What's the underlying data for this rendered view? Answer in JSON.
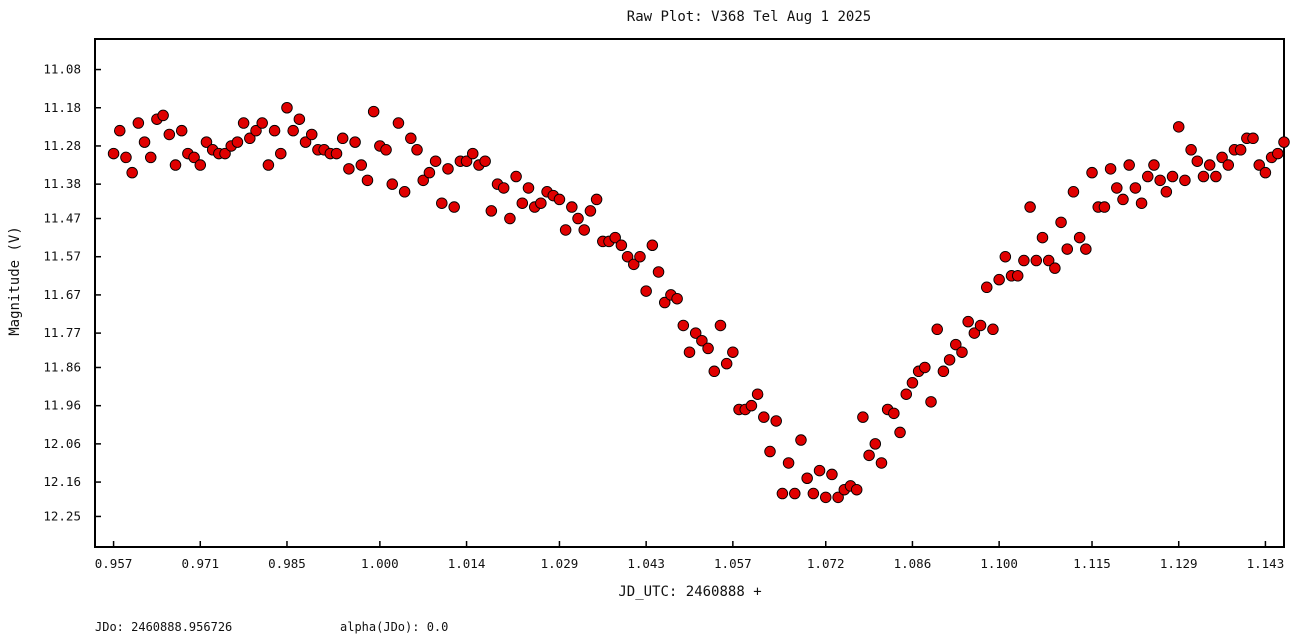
{
  "chart_data": {
    "type": "scatter",
    "title": "Raw Plot: V368 Tel Aug 1 2025",
    "xlabel": "JD_UTC: 2460888 +",
    "ylabel": "Magnitude (V)",
    "x_ticks": [
      "0.957",
      "0.971",
      "0.985",
      "1.000",
      "1.014",
      "1.029",
      "1.043",
      "1.057",
      "1.072",
      "1.086",
      "1.100",
      "1.115",
      "1.129",
      "1.143"
    ],
    "y_ticks": [
      "11.08",
      "11.18",
      "11.28",
      "11.38",
      "11.47",
      "11.57",
      "11.67",
      "11.77",
      "11.86",
      "11.96",
      "12.06",
      "12.16",
      "12.25"
    ],
    "xlim": [
      0.954,
      1.146
    ],
    "ylim": [
      12.33,
      11.0
    ],
    "y_inverted": true,
    "grid": false,
    "marker_color": "#e00000",
    "marker_edge_color": "#000000",
    "series": [
      {
        "points": [
          [
            0.957,
            11.3
          ],
          [
            0.958,
            11.24
          ],
          [
            0.959,
            11.31
          ],
          [
            0.96,
            11.35
          ],
          [
            0.961,
            11.22
          ],
          [
            0.962,
            11.27
          ],
          [
            0.963,
            11.31
          ],
          [
            0.964,
            11.21
          ],
          [
            0.965,
            11.2
          ],
          [
            0.966,
            11.25
          ],
          [
            0.967,
            11.33
          ],
          [
            0.968,
            11.24
          ],
          [
            0.969,
            11.3
          ],
          [
            0.97,
            11.31
          ],
          [
            0.971,
            11.33
          ],
          [
            0.972,
            11.27
          ],
          [
            0.973,
            11.29
          ],
          [
            0.974,
            11.3
          ],
          [
            0.975,
            11.3
          ],
          [
            0.976,
            11.28
          ],
          [
            0.977,
            11.27
          ],
          [
            0.978,
            11.22
          ],
          [
            0.979,
            11.26
          ],
          [
            0.98,
            11.24
          ],
          [
            0.981,
            11.22
          ],
          [
            0.982,
            11.33
          ],
          [
            0.983,
            11.24
          ],
          [
            0.984,
            11.3
          ],
          [
            0.985,
            11.18
          ],
          [
            0.986,
            11.24
          ],
          [
            0.987,
            11.21
          ],
          [
            0.988,
            11.27
          ],
          [
            0.989,
            11.25
          ],
          [
            0.99,
            11.29
          ],
          [
            0.991,
            11.29
          ],
          [
            0.992,
            11.3
          ],
          [
            0.993,
            11.3
          ],
          [
            0.994,
            11.26
          ],
          [
            0.995,
            11.34
          ],
          [
            0.996,
            11.27
          ],
          [
            0.997,
            11.33
          ],
          [
            0.998,
            11.37
          ],
          [
            0.999,
            11.19
          ],
          [
            1.0,
            11.28
          ],
          [
            1.001,
            11.29
          ],
          [
            1.002,
            11.38
          ],
          [
            1.003,
            11.22
          ],
          [
            1.004,
            11.4
          ],
          [
            1.005,
            11.26
          ],
          [
            1.006,
            11.29
          ],
          [
            1.007,
            11.37
          ],
          [
            1.008,
            11.35
          ],
          [
            1.009,
            11.32
          ],
          [
            1.01,
            11.43
          ],
          [
            1.011,
            11.34
          ],
          [
            1.012,
            11.44
          ],
          [
            1.013,
            11.32
          ],
          [
            1.014,
            11.32
          ],
          [
            1.015,
            11.3
          ],
          [
            1.016,
            11.33
          ],
          [
            1.017,
            11.32
          ],
          [
            1.018,
            11.45
          ],
          [
            1.019,
            11.38
          ],
          [
            1.02,
            11.39
          ],
          [
            1.021,
            11.47
          ],
          [
            1.022,
            11.36
          ],
          [
            1.023,
            11.43
          ],
          [
            1.024,
            11.39
          ],
          [
            1.025,
            11.44
          ],
          [
            1.026,
            11.43
          ],
          [
            1.027,
            11.4
          ],
          [
            1.028,
            11.41
          ],
          [
            1.029,
            11.42
          ],
          [
            1.03,
            11.5
          ],
          [
            1.031,
            11.44
          ],
          [
            1.032,
            11.47
          ],
          [
            1.033,
            11.5
          ],
          [
            1.034,
            11.45
          ],
          [
            1.035,
            11.42
          ],
          [
            1.036,
            11.53
          ],
          [
            1.037,
            11.53
          ],
          [
            1.038,
            11.52
          ],
          [
            1.039,
            11.54
          ],
          [
            1.04,
            11.57
          ],
          [
            1.041,
            11.59
          ],
          [
            1.042,
            11.57
          ],
          [
            1.043,
            11.66
          ],
          [
            1.044,
            11.54
          ],
          [
            1.045,
            11.61
          ],
          [
            1.046,
            11.69
          ],
          [
            1.047,
            11.67
          ],
          [
            1.048,
            11.68
          ],
          [
            1.049,
            11.75
          ],
          [
            1.05,
            11.82
          ],
          [
            1.051,
            11.77
          ],
          [
            1.052,
            11.79
          ],
          [
            1.053,
            11.81
          ],
          [
            1.054,
            11.87
          ],
          [
            1.055,
            11.75
          ],
          [
            1.056,
            11.85
          ],
          [
            1.057,
            11.82
          ],
          [
            1.058,
            11.97
          ],
          [
            1.059,
            11.97
          ],
          [
            1.06,
            11.96
          ],
          [
            1.061,
            11.93
          ],
          [
            1.062,
            11.99
          ],
          [
            1.063,
            12.08
          ],
          [
            1.064,
            12.0
          ],
          [
            1.065,
            12.19
          ],
          [
            1.066,
            12.11
          ],
          [
            1.067,
            12.19
          ],
          [
            1.068,
            12.05
          ],
          [
            1.069,
            12.15
          ],
          [
            1.07,
            12.19
          ],
          [
            1.071,
            12.13
          ],
          [
            1.072,
            12.2
          ],
          [
            1.073,
            12.14
          ],
          [
            1.074,
            12.2
          ],
          [
            1.075,
            12.18
          ],
          [
            1.076,
            12.17
          ],
          [
            1.077,
            12.18
          ],
          [
            1.078,
            11.99
          ],
          [
            1.079,
            12.09
          ],
          [
            1.08,
            12.06
          ],
          [
            1.081,
            12.11
          ],
          [
            1.082,
            11.97
          ],
          [
            1.083,
            11.98
          ],
          [
            1.084,
            12.03
          ],
          [
            1.085,
            11.93
          ],
          [
            1.086,
            11.9
          ],
          [
            1.087,
            11.87
          ],
          [
            1.088,
            11.86
          ],
          [
            1.089,
            11.95
          ],
          [
            1.09,
            11.76
          ],
          [
            1.091,
            11.87
          ],
          [
            1.092,
            11.84
          ],
          [
            1.093,
            11.8
          ],
          [
            1.094,
            11.82
          ],
          [
            1.095,
            11.74
          ],
          [
            1.096,
            11.77
          ],
          [
            1.097,
            11.75
          ],
          [
            1.098,
            11.65
          ],
          [
            1.099,
            11.76
          ],
          [
            1.1,
            11.63
          ],
          [
            1.101,
            11.57
          ],
          [
            1.102,
            11.62
          ],
          [
            1.103,
            11.62
          ],
          [
            1.104,
            11.58
          ],
          [
            1.105,
            11.44
          ],
          [
            1.106,
            11.58
          ],
          [
            1.107,
            11.52
          ],
          [
            1.108,
            11.58
          ],
          [
            1.109,
            11.6
          ],
          [
            1.11,
            11.48
          ],
          [
            1.111,
            11.55
          ],
          [
            1.112,
            11.4
          ],
          [
            1.113,
            11.52
          ],
          [
            1.114,
            11.55
          ],
          [
            1.115,
            11.35
          ],
          [
            1.116,
            11.44
          ],
          [
            1.117,
            11.44
          ],
          [
            1.118,
            11.34
          ],
          [
            1.119,
            11.39
          ],
          [
            1.12,
            11.42
          ],
          [
            1.121,
            11.33
          ],
          [
            1.122,
            11.39
          ],
          [
            1.123,
            11.43
          ],
          [
            1.124,
            11.36
          ],
          [
            1.125,
            11.33
          ],
          [
            1.126,
            11.37
          ],
          [
            1.127,
            11.4
          ],
          [
            1.128,
            11.36
          ],
          [
            1.129,
            11.23
          ],
          [
            1.13,
            11.37
          ],
          [
            1.131,
            11.29
          ],
          [
            1.132,
            11.32
          ],
          [
            1.133,
            11.36
          ],
          [
            1.134,
            11.33
          ],
          [
            1.135,
            11.36
          ],
          [
            1.136,
            11.31
          ],
          [
            1.137,
            11.33
          ],
          [
            1.138,
            11.29
          ],
          [
            1.139,
            11.29
          ],
          [
            1.14,
            11.26
          ],
          [
            1.141,
            11.26
          ],
          [
            1.142,
            11.33
          ],
          [
            1.143,
            11.35
          ],
          [
            1.144,
            11.31
          ],
          [
            1.145,
            11.3
          ],
          [
            1.146,
            11.27
          ]
        ]
      }
    ]
  },
  "footer": {
    "jdo": "JDo: 2460888.956726",
    "alpha": "alpha(JDo): 0.0"
  }
}
